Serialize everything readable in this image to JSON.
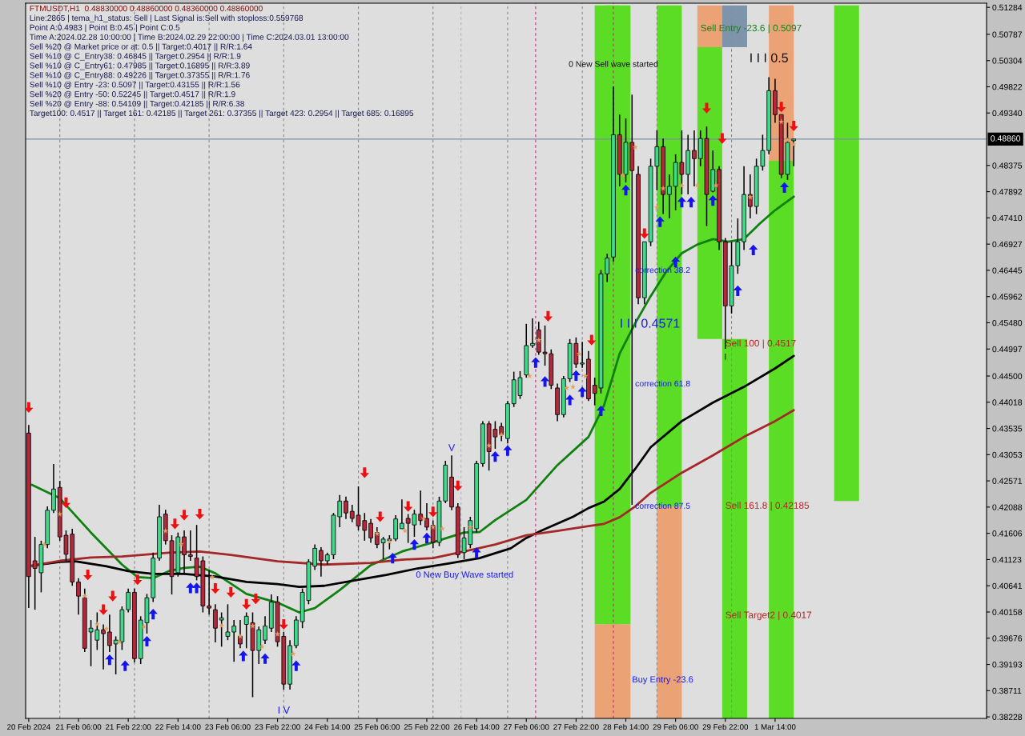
{
  "chart_data": {
    "type": "candlestick",
    "title": "FTMUSDT,H1  0.48830000 0.48860000 0.48360000 0.48860000",
    "x": [
      "2024-02-20T14:00",
      "2024-02-20T16:00",
      "2024-02-20T18:00",
      "2024-02-20T20:00",
      "2024-02-20T22:00",
      "2024-02-21T00:00",
      "2024-02-21T02:00",
      "2024-02-21T04:00",
      "2024-02-21T06:00",
      "2024-02-21T08:00",
      "2024-02-21T10:00",
      "2024-02-21T12:00",
      "2024-02-21T14:00",
      "2024-02-21T16:00",
      "2024-02-21T18:00",
      "2024-02-21T20:00",
      "2024-02-21T22:00",
      "2024-02-22T00:00",
      "2024-02-22T02:00",
      "2024-02-22T04:00",
      "2024-02-22T06:00",
      "2024-02-22T08:00",
      "2024-02-22T10:00",
      "2024-02-22T12:00",
      "2024-02-22T14:00",
      "2024-02-22T16:00",
      "2024-02-22T18:00",
      "2024-02-22T20:00",
      "2024-02-22T22:00",
      "2024-02-23T00:00",
      "2024-02-23T02:00",
      "2024-02-23T04:00",
      "2024-02-23T06:00",
      "2024-02-23T08:00",
      "2024-02-23T10:00",
      "2024-02-23T12:00",
      "2024-02-23T14:00",
      "2024-02-23T16:00",
      "2024-02-23T18:00",
      "2024-02-23T20:00",
      "2024-02-23T22:00",
      "2024-02-24T00:00",
      "2024-02-24T02:00",
      "2024-02-24T04:00",
      "2024-02-24T06:00",
      "2024-02-24T08:00",
      "2024-02-24T10:00",
      "2024-02-24T12:00",
      "2024-02-24T14:00",
      "2024-02-24T16:00",
      "2024-02-24T18:00",
      "2024-02-24T20:00",
      "2024-02-24T22:00",
      "2024-02-25T00:00",
      "2024-02-25T02:00",
      "2024-02-25T04:00",
      "2024-02-25T06:00",
      "2024-02-25T08:00",
      "2024-02-25T10:00",
      "2024-02-25T12:00",
      "2024-02-25T14:00",
      "2024-02-25T16:00",
      "2024-02-25T18:00",
      "2024-02-25T20:00",
      "2024-02-25T22:00",
      "2024-02-26T00:00",
      "2024-02-26T02:00",
      "2024-02-26T04:00",
      "2024-02-26T06:00",
      "2024-02-26T08:00",
      "2024-02-26T10:00",
      "2024-02-26T12:00",
      "2024-02-26T14:00",
      "2024-02-26T16:00",
      "2024-02-26T18:00",
      "2024-02-26T20:00",
      "2024-02-26T22:00",
      "2024-02-27T00:00",
      "2024-02-27T02:00",
      "2024-02-27T04:00",
      "2024-02-27T06:00",
      "2024-02-27T08:00",
      "2024-02-27T10:00",
      "2024-02-27T12:00",
      "2024-02-27T14:00",
      "2024-02-27T16:00",
      "2024-02-27T18:00",
      "2024-02-27T20:00",
      "2024-02-27T22:00",
      "2024-02-28T00:00",
      "2024-02-28T02:00",
      "2024-02-28T04:00",
      "2024-02-28T06:00",
      "2024-02-28T08:00",
      "2024-02-28T10:00",
      "2024-02-28T12:00",
      "2024-02-28T14:00",
      "2024-02-28T16:00",
      "2024-02-28T18:00",
      "2024-02-28T20:00",
      "2024-02-28T22:00",
      "2024-02-29T00:00",
      "2024-02-29T02:00",
      "2024-02-29T04:00",
      "2024-02-29T06:00",
      "2024-02-29T08:00",
      "2024-02-29T10:00",
      "2024-02-29T12:00",
      "2024-02-29T14:00",
      "2024-02-29T16:00",
      "2024-02-29T18:00",
      "2024-02-29T20:00",
      "2024-02-29T22:00",
      "2024-03-01T00:00",
      "2024-03-01T02:00",
      "2024-03-01T04:00",
      "2024-03-01T06:00",
      "2024-03-01T08:00",
      "2024-03-01T10:00",
      "2024-03-01T12:00",
      "2024-03-01T14:00",
      "2024-03-01T16:00",
      "2024-03-01T18:00",
      "2024-03-01T20:00"
    ],
    "ohlc": [
      [
        0.4345,
        0.436,
        0.4023,
        0.4081
      ],
      [
        0.411,
        0.4154,
        0.402,
        0.4096
      ],
      [
        0.4088,
        0.4147,
        0.4052,
        0.414
      ],
      [
        0.414,
        0.421,
        0.4133,
        0.4203
      ],
      [
        0.4203,
        0.4288,
        0.4198,
        0.4242
      ],
      [
        0.4245,
        0.4257,
        0.4147,
        0.4154
      ],
      [
        0.4157,
        0.4166,
        0.411,
        0.4122
      ],
      [
        0.4159,
        0.4169,
        0.4064,
        0.4071
      ],
      [
        0.4071,
        0.4078,
        0.4011,
        0.4045
      ],
      [
        0.4042,
        0.4059,
        0.3942,
        0.3949
      ],
      [
        0.3979,
        0.4001,
        0.3916,
        0.3986
      ],
      [
        0.3964,
        0.4015,
        0.3946,
        0.3983
      ],
      [
        0.3983,
        0.3993,
        0.391,
        0.3976
      ],
      [
        0.3979,
        0.4011,
        0.3942,
        0.3954
      ],
      [
        0.3957,
        0.3971,
        0.3901,
        0.3964
      ],
      [
        0.3961,
        0.4026,
        0.3946,
        0.402
      ],
      [
        0.402,
        0.4059,
        0.4015,
        0.4052
      ],
      [
        0.4052,
        0.4059,
        0.3923,
        0.393
      ],
      [
        0.393,
        0.4008,
        0.392,
        0.4001
      ],
      [
        0.3996,
        0.4049,
        0.3976,
        0.4042
      ],
      [
        0.4042,
        0.4125,
        0.4034,
        0.4115
      ],
      [
        0.4115,
        0.4213,
        0.411,
        0.4191
      ],
      [
        0.4196,
        0.4204,
        0.414,
        0.4147
      ],
      [
        0.4147,
        0.4157,
        0.4048,
        0.4081
      ],
      [
        0.4088,
        0.4162,
        0.4081,
        0.4154
      ],
      [
        0.4154,
        0.4166,
        0.4088,
        0.4121
      ],
      [
        0.4121,
        0.4166,
        0.411,
        0.4118
      ],
      [
        0.4115,
        0.4176,
        0.4074,
        0.4081
      ],
      [
        0.411,
        0.4118,
        0.4015,
        0.4027
      ],
      [
        0.4027,
        0.4093,
        0.4011,
        0.4023
      ],
      [
        0.402,
        0.403,
        0.396,
        0.3986
      ],
      [
        0.4001,
        0.4015,
        0.3952,
        0.4005
      ],
      [
        0.3971,
        0.403,
        0.3964,
        0.3979
      ],
      [
        0.3979,
        0.4001,
        0.3924,
        0.399
      ],
      [
        0.3971,
        0.4001,
        0.3949,
        0.3957
      ],
      [
        0.3993,
        0.4015,
        0.3949,
        0.4008
      ],
      [
        0.3996,
        0.4015,
        0.3859,
        0.3945
      ],
      [
        0.3945,
        0.3989,
        0.392,
        0.3983
      ],
      [
        0.3964,
        0.4008,
        0.3957,
        0.399
      ],
      [
        0.3986,
        0.4048,
        0.3979,
        0.4034
      ],
      [
        0.4034,
        0.4045,
        0.3952,
        0.3961
      ],
      [
        0.3971,
        0.3979,
        0.3873,
        0.3883
      ],
      [
        0.3883,
        0.3964,
        0.3873,
        0.3954
      ],
      [
        0.3954,
        0.4008,
        0.3949,
        0.4001
      ],
      [
        0.3998,
        0.4059,
        0.3986,
        0.4052
      ],
      [
        0.4037,
        0.4113,
        0.403,
        0.4108
      ],
      [
        0.41,
        0.414,
        0.4093,
        0.4133
      ],
      [
        0.4129,
        0.4135,
        0.4081,
        0.411
      ],
      [
        0.411,
        0.4125,
        0.4103,
        0.4121
      ],
      [
        0.4121,
        0.4198,
        0.4113,
        0.4194
      ],
      [
        0.4191,
        0.4231,
        0.4172,
        0.422
      ],
      [
        0.422,
        0.4228,
        0.4187,
        0.4198
      ],
      [
        0.4201,
        0.4213,
        0.4181,
        0.4188
      ],
      [
        0.4194,
        0.4247,
        0.4166,
        0.4174
      ],
      [
        0.4184,
        0.4198,
        0.4147,
        0.4166
      ],
      [
        0.4179,
        0.4187,
        0.4143,
        0.4152
      ],
      [
        0.4162,
        0.4172,
        0.4133,
        0.414
      ],
      [
        0.4143,
        0.4154,
        0.4113,
        0.415
      ],
      [
        0.4147,
        0.4157,
        0.4131,
        0.415
      ],
      [
        0.415,
        0.4194,
        0.4146,
        0.4187
      ],
      [
        0.4169,
        0.4223,
        0.4169,
        0.4179
      ],
      [
        0.4188,
        0.4196,
        0.4143,
        0.4179
      ],
      [
        0.4176,
        0.4204,
        0.4154,
        0.4196
      ],
      [
        0.4196,
        0.4239,
        0.4176,
        0.4184
      ],
      [
        0.4188,
        0.4216,
        0.4166,
        0.4172
      ],
      [
        0.4175,
        0.4184,
        0.4133,
        0.4144
      ],
      [
        0.4144,
        0.4228,
        0.4137,
        0.422
      ],
      [
        0.422,
        0.4294,
        0.4216,
        0.4286
      ],
      [
        0.4264,
        0.4304,
        0.4203,
        0.4209
      ],
      [
        0.4209,
        0.4216,
        0.4115,
        0.4121
      ],
      [
        0.4125,
        0.4172,
        0.4113,
        0.4152
      ],
      [
        0.414,
        0.4191,
        0.4133,
        0.4184
      ],
      [
        0.4169,
        0.4294,
        0.4162,
        0.4289
      ],
      [
        0.4289,
        0.4367,
        0.4283,
        0.4362
      ],
      [
        0.4362,
        0.4367,
        0.4276,
        0.4311
      ],
      [
        0.4352,
        0.4367,
        0.4316,
        0.4338
      ],
      [
        0.4357,
        0.4364,
        0.433,
        0.4342
      ],
      [
        0.4335,
        0.4404,
        0.4326,
        0.4399
      ],
      [
        0.4399,
        0.4458,
        0.4393,
        0.4443
      ],
      [
        0.4414,
        0.4459,
        0.4408,
        0.4447
      ],
      [
        0.4452,
        0.4546,
        0.4447,
        0.4506
      ],
      [
        0.4506,
        0.4556,
        0.4502,
        0.451
      ],
      [
        0.4535,
        0.455,
        0.4489,
        0.4494
      ],
      [
        0.4494,
        0.4543,
        0.4469,
        0.4491
      ],
      [
        0.4491,
        0.4499,
        0.4426,
        0.4433
      ],
      [
        0.4428,
        0.4436,
        0.4367,
        0.4379
      ],
      [
        0.4379,
        0.445,
        0.4374,
        0.4445
      ],
      [
        0.4445,
        0.4518,
        0.4439,
        0.451
      ],
      [
        0.451,
        0.4521,
        0.4465,
        0.4472
      ],
      [
        0.4472,
        0.4513,
        0.4465,
        0.4474
      ],
      [
        0.4481,
        0.4496,
        0.4404,
        0.4408
      ],
      [
        0.4433,
        0.4447,
        0.4396,
        0.4418
      ],
      [
        0.4428,
        0.4645,
        0.4418,
        0.4638
      ],
      [
        0.4638,
        0.4675,
        0.4623,
        0.4667
      ],
      [
        0.4669,
        0.4983,
        0.466,
        0.4894
      ],
      [
        0.4894,
        0.4931,
        0.4799,
        0.4821
      ],
      [
        0.4821,
        0.4924,
        0.4806,
        0.488
      ],
      [
        0.488,
        0.4968,
        0.4213,
        0.4828
      ],
      [
        0.4821,
        0.4836,
        0.4582,
        0.4594
      ],
      [
        0.4594,
        0.4697,
        0.4582,
        0.4697
      ],
      [
        0.4697,
        0.485,
        0.4689,
        0.4836
      ],
      [
        0.4836,
        0.4902,
        0.4792,
        0.4872
      ],
      [
        0.4872,
        0.4887,
        0.4748,
        0.4784
      ],
      [
        0.4784,
        0.4821,
        0.474,
        0.4799
      ],
      [
        0.4799,
        0.4858,
        0.4755,
        0.4843
      ],
      [
        0.4843,
        0.4902,
        0.4784,
        0.4821
      ],
      [
        0.4821,
        0.4894,
        0.4784,
        0.4865
      ],
      [
        0.4865,
        0.4902,
        0.4799,
        0.485
      ],
      [
        0.485,
        0.4902,
        0.4836,
        0.4887
      ],
      [
        0.4887,
        0.4909,
        0.4726,
        0.4784
      ],
      [
        0.479,
        0.4865,
        0.4788,
        0.483
      ],
      [
        0.483,
        0.4836,
        0.4682,
        0.4697
      ],
      [
        0.4697,
        0.4704,
        0.45,
        0.4579
      ],
      [
        0.4579,
        0.4697,
        0.4565,
        0.4653
      ],
      [
        0.4653,
        0.474,
        0.4638,
        0.4697
      ],
      [
        0.4697,
        0.4836,
        0.4682,
        0.4784
      ],
      [
        0.4784,
        0.4821,
        0.474,
        0.4762
      ],
      [
        0.4762,
        0.485,
        0.4748,
        0.4836
      ],
      [
        0.4836,
        0.4894,
        0.4828,
        0.4865
      ],
      [
        0.4865,
        0.5,
        0.4858,
        0.4975
      ],
      [
        0.4975,
        0.4997,
        0.4916,
        0.4931
      ],
      [
        0.4931,
        0.4931,
        0.4814,
        0.4821
      ],
      [
        0.4821,
        0.4916,
        0.4811,
        0.488
      ],
      [
        0.4883,
        0.4886,
        0.4836,
        0.4886
      ]
    ],
    "colors": [
      "#b3283a",
      "#b3283a",
      "#3fd98b",
      "#3fd98b",
      "#3fd98b",
      "#b3283a",
      "#b3283a",
      "#b3283a",
      "#b3283a",
      "#b3283a",
      "#3fd98b",
      "#3fd98b",
      "#b3283a",
      "#b3283a",
      "#3fd98b",
      "#3fd98b",
      "#3fd98b",
      "#b3283a",
      "#3fd98b",
      "#3fd98b",
      "#3fd98b",
      "#3fd98b",
      "#b3283a",
      "#b3283a",
      "#3fd98b",
      "#b3283a",
      "#b3283a",
      "#b3283a",
      "#b3283a",
      "#b3283a",
      "#b3283a",
      "#3fd98b",
      "#3fd98b",
      "#3fd98b",
      "#b3283a",
      "#3fd98b",
      "#b3283a",
      "#3fd98b",
      "#3fd98b",
      "#3fd98b",
      "#b3283a",
      "#b3283a",
      "#3fd98b",
      "#3fd98b",
      "#3fd98b",
      "#3fd98b",
      "#3fd98b",
      "#b3283a",
      "#3fd98b",
      "#3fd98b",
      "#3fd98b",
      "#b3283a",
      "#b3283a",
      "#b3283a",
      "#b3283a",
      "#b3283a",
      "#b3283a",
      "#3fd98b",
      "#3fd98b",
      "#3fd98b",
      "#3fd98b",
      "#b3283a",
      "#3fd98b",
      "#b3283a",
      "#b3283a",
      "#b3283a",
      "#3fd98b",
      "#3fd98b",
      "#b3283a",
      "#b3283a",
      "#3fd98b",
      "#3fd98b",
      "#3fd98b",
      "#3fd98b",
      "#b3283a",
      "#b3283a",
      "#b3283a",
      "#3fd98b",
      "#3fd98b",
      "#3fd98b",
      "#3fd98b",
      "#3fd98b",
      "#b3283a",
      "#b3283a",
      "#b3283a",
      "#b3283a",
      "#3fd98b",
      "#3fd98b",
      "#b3283a",
      "#3fd98b",
      "#b3283a",
      "#b3283a",
      "#3fd98b",
      "#3fd98b",
      "#3fd98b",
      "#b3283a",
      "#3fd98b",
      "#b3283a",
      "#b3283a",
      "#3fd98b",
      "#3fd98b",
      "#3fd98b",
      "#b3283a",
      "#3fd98b",
      "#3fd98b",
      "#b3283a",
      "#3fd98b",
      "#b3283a",
      "#3fd98b",
      "#b3283a",
      "#3fd98b",
      "#b3283a",
      "#b3283a",
      "#3fd98b",
      "#3fd98b",
      "#3fd98b",
      "#b3283a",
      "#3fd98b",
      "#3fd98b",
      "#3fd98b",
      "#b3283a",
      "#b3283a",
      "#3fd98b",
      "#3fd98b"
    ],
    "series": [
      {
        "type": "bar",
        "color": "#5bdc25",
        "x": [
          "2024-02-28T08:00",
          "2024-02-28T11:30",
          "2024-02-29T04:00",
          "2024-02-29T17:00",
          "2024-03-01T01:00",
          "2024-03-01T16:00",
          "2024-03-02T13:00"
        ],
        "base": [
          0.3993,
          0.3993,
          0.421,
          0.4518,
          0.382,
          0.382,
          0.422
        ],
        "values": [
          0.1139,
          0.1139,
          0.0922,
          0.0537,
          0.0698,
          0.1026,
          0.0912
        ]
      },
      {
        "type": "bar",
        "color": "#eba274",
        "x": [
          "2024-02-28T08:00",
          "2024-02-28T11:30",
          "2024-02-29T04:00",
          "2024-02-29T17:00",
          "2024-03-01T16:00"
        ],
        "base": [
          0.382,
          0.382,
          0.382,
          0.5055,
          0.4846
        ],
        "values": [
          0.0173,
          0.0173,
          0.039,
          0.0077,
          0.0286
        ]
      },
      {
        "type": "bar",
        "color": "#7d94aa",
        "x": [
          "2024-03-01T01:00"
        ],
        "base": [
          0.5055
        ],
        "values": [
          0.0077
        ]
      },
      {
        "type": "line",
        "color": "#108010",
        "x": [
          "2024-02-20T15:00",
          "2024-02-21T00:00",
          "2024-02-21T10:00",
          "2024-02-21T20:00",
          "2024-02-22T01:00",
          "2024-02-22T06:00",
          "2024-02-22T11:00",
          "2024-02-22T16:00",
          "2024-02-22T21:00",
          "2024-02-23T02:00",
          "2024-02-23T12:00",
          "2024-02-23T22:00",
          "2024-02-24T05:00",
          "2024-02-24T10:00",
          "2024-02-24T18:00",
          "2024-02-25T04:00",
          "2024-02-25T14:00",
          "2024-02-26T00:00",
          "2024-02-26T10:00",
          "2024-02-26T15:00",
          "2024-02-26T20:00",
          "2024-02-27T06:00",
          "2024-02-27T16:00",
          "2024-02-28T02:00",
          "2024-02-28T07:00",
          "2024-02-28T12:00",
          "2024-02-28T17:00",
          "2024-02-28T22:00",
          "2024-02-29T03:00",
          "2024-02-29T08:00",
          "2024-02-29T13:00",
          "2024-02-29T18:00",
          "2024-02-29T23:00",
          "2024-03-01T04:00",
          "2024-03-01T09:00",
          "2024-03-01T14:00",
          "2024-03-01T20:00"
        ],
        "values": [
          0.425,
          0.4225,
          0.4162,
          0.4103,
          0.408,
          0.4078,
          0.4091,
          0.4097,
          0.4099,
          0.4087,
          0.4049,
          0.4033,
          0.4015,
          0.4023,
          0.4056,
          0.4102,
          0.4127,
          0.4144,
          0.4162,
          0.4163,
          0.4185,
          0.4222,
          0.4286,
          0.4338,
          0.4396,
          0.4491,
          0.4547,
          0.4597,
          0.4642,
          0.4676,
          0.4692,
          0.4702,
          0.4697,
          0.4702,
          0.473,
          0.4755,
          0.478
        ]
      },
      {
        "type": "line",
        "color": "#000000",
        "x": [
          "2024-02-20T15:00",
          "2024-02-21T00:00",
          "2024-02-21T05:00",
          "2024-02-21T15:00",
          "2024-02-21T22:00",
          "2024-02-22T06:00",
          "2024-02-22T16:00",
          "2024-02-23T02:00",
          "2024-02-23T12:00",
          "2024-02-23T22:00",
          "2024-02-24T05:00",
          "2024-02-24T13:00",
          "2024-02-24T23:00",
          "2024-02-25T09:00",
          "2024-02-25T19:00",
          "2024-02-26T05:00",
          "2024-02-26T15:00",
          "2024-02-27T01:00",
          "2024-02-27T06:00",
          "2024-02-27T11:00",
          "2024-02-27T21:00",
          "2024-02-28T02:00",
          "2024-02-28T07:00",
          "2024-02-28T12:00",
          "2024-02-28T17:00",
          "2024-02-28T22:00",
          "2024-02-29T08:00",
          "2024-02-29T18:00",
          "2024-03-01T04:00",
          "2024-03-01T14:00",
          "2024-03-01T20:00"
        ],
        "values": [
          0.4101,
          0.4108,
          0.4109,
          0.41,
          0.4091,
          0.4086,
          0.4086,
          0.4081,
          0.4071,
          0.4067,
          0.4062,
          0.4064,
          0.4074,
          0.4084,
          0.4096,
          0.4105,
          0.4115,
          0.4133,
          0.4152,
          0.4166,
          0.4191,
          0.4207,
          0.4219,
          0.4242,
          0.4279,
          0.4319,
          0.4367,
          0.4401,
          0.443,
          0.4464,
          0.4487
        ]
      },
      {
        "type": "line",
        "color": "#a52828",
        "x": [
          "2024-02-20T15:00",
          "2024-02-21T00:00",
          "2024-02-21T10:00",
          "2024-02-21T20:00",
          "2024-02-22T11:00",
          "2024-02-22T21:00",
          "2024-02-23T07:00",
          "2024-02-23T22:00",
          "2024-02-24T13:00",
          "2024-02-25T04:00",
          "2024-02-25T14:00",
          "2024-02-26T00:00",
          "2024-02-26T10:00",
          "2024-02-26T20:00",
          "2024-02-27T06:00",
          "2024-02-27T16:00",
          "2024-02-28T02:00",
          "2024-02-28T07:00",
          "2024-02-28T12:00",
          "2024-02-28T17:00",
          "2024-02-28T22:00",
          "2024-02-29T08:00",
          "2024-02-29T18:00",
          "2024-03-01T04:00",
          "2024-03-01T14:00",
          "2024-03-01T20:00"
        ],
        "values": [
          0.4101,
          0.411,
          0.4116,
          0.4118,
          0.4125,
          0.4127,
          0.4121,
          0.4109,
          0.4103,
          0.4106,
          0.4112,
          0.4115,
          0.4127,
          0.414,
          0.4157,
          0.4165,
          0.4174,
          0.4178,
          0.419,
          0.421,
          0.4235,
          0.4272,
          0.4304,
          0.4338,
          0.4367,
          0.4387
        ]
      },
      {
        "type": "scatter",
        "color": "#ee1010",
        "marker": "triangle_down",
        "x": [
          "2024-02-20T14:00",
          "2024-02-21T02:00",
          "2024-02-21T09:00",
          "2024-02-21T14:00",
          "2024-02-21T17:00",
          "2024-02-22T01:00",
          "2024-02-22T13:00",
          "2024-02-22T16:00",
          "2024-02-22T21:00",
          "2024-02-23T02:00",
          "2024-02-23T07:00",
          "2024-02-23T12:00",
          "2024-02-23T15:00",
          "2024-02-24T00:00",
          "2024-02-25T02:00",
          "2024-02-25T07:00",
          "2024-02-25T16:00",
          "2024-02-26T00:00",
          "2024-02-26T08:00",
          "2024-02-27T13:00",
          "2024-02-28T03:00",
          "2024-02-28T20:00",
          "2024-02-29T16:00",
          "2024-02-29T21:00",
          "2024-03-01T16:00",
          "2024-03-01T20:00"
        ],
        "values": [
          0.4392,
          0.4217,
          0.4084,
          0.402,
          0.4045,
          0.4075,
          0.4178,
          0.4194,
          0.4196,
          0.4059,
          0.4052,
          0.403,
          0.404,
          0.3993,
          0.4272,
          0.4191,
          0.421,
          0.42,
          0.4248,
          0.456,
          0.4516,
          0.4712,
          0.4943,
          0.4887,
          0.4945,
          0.491
        ]
      },
      {
        "type": "scatter",
        "color": "#1414ee",
        "marker": "triangle",
        "x": [
          "2024-02-21T16:00",
          "2024-02-21T21:00",
          "2024-02-22T04:00",
          "2024-02-22T06:00",
          "2024-02-22T18:00",
          "2024-02-22T20:00",
          "2024-02-23T11:00",
          "2024-02-23T18:00",
          "2024-02-24T04:00",
          "2024-02-25T11:00",
          "2024-02-25T18:00",
          "2024-02-25T22:00",
          "2024-02-26T14:00",
          "2024-02-26T20:00",
          "2024-02-27T00:00",
          "2024-02-27T09:00",
          "2024-02-27T12:00",
          "2024-02-27T20:00",
          "2024-02-27T22:00",
          "2024-02-28T00:00",
          "2024-02-28T06:00",
          "2024-02-28T14:00",
          "2024-02-29T01:00",
          "2024-02-29T06:00",
          "2024-02-29T08:00",
          "2024-02-29T11:00",
          "2024-02-29T18:00",
          "2024-03-01T02:00",
          "2024-03-01T07:00",
          "2024-03-01T17:00"
        ],
        "values": [
          0.3928,
          0.3917,
          0.3962,
          0.4012,
          0.406,
          0.406,
          0.3935,
          0.393,
          0.3917,
          0.4115,
          0.414,
          0.4152,
          0.4125,
          0.4302,
          0.4313,
          0.4475,
          0.444,
          0.4406,
          0.4451,
          0.4421,
          0.4386,
          0.4792,
          0.4734,
          0.466,
          0.477,
          0.477,
          0.4773,
          0.4607,
          0.4682,
          0.4797
        ]
      },
      {
        "type": "scatter",
        "color": "#e0a060",
        "marker": "star",
        "x": [
          "2024-02-20T19:00",
          "2024-02-21T00:00",
          "2024-02-21T08:00",
          "2024-02-21T12:00",
          "2024-02-21T15:00",
          "2024-02-21T19:00",
          "2024-02-22T03:00",
          "2024-02-22T10:00",
          "2024-02-22T15:00",
          "2024-02-23T01:00",
          "2024-02-23T04:00",
          "2024-02-23T10:00",
          "2024-02-23T14:00",
          "2024-02-23T17:00",
          "2024-02-23T22:00",
          "2024-02-24T03:00",
          "2024-02-25T06:00",
          "2024-02-25T10:00",
          "2024-02-25T15:00",
          "2024-02-25T21:00",
          "2024-02-26T00:00",
          "2024-02-26T03:00",
          "2024-02-26T12:00",
          "2024-02-26T18:00",
          "2024-02-26T22:00",
          "2024-02-27T07:00",
          "2024-02-27T10:00",
          "2024-02-27T19:00",
          "2024-02-27T21:00",
          "2024-02-27T23:00",
          "2024-02-28T01:00",
          "2024-02-28T13:00",
          "2024-02-28T17:00",
          "2024-02-29T00:00",
          "2024-02-29T02:00",
          "2024-02-29T08:00",
          "2024-02-29T13:00",
          "2024-02-29T19:00",
          "2024-03-01T06:00",
          "2024-03-01T16:00",
          "2024-03-01T18:00",
          "2024-03-01T20:00"
        ],
        "values": [
          0.414,
          0.4196,
          0.4045,
          0.3993,
          0.3985,
          0.3961,
          0.3989,
          0.4165,
          0.4141,
          0.408,
          0.399,
          0.3971,
          0.399,
          0.3952,
          0.3975,
          0.3939,
          0.416,
          0.4145,
          0.4165,
          0.4188,
          0.4172,
          0.4169,
          0.4172,
          0.4322,
          0.4342,
          0.445,
          0.4516,
          0.4428,
          0.443,
          0.4491,
          0.445,
          0.482,
          0.4871,
          0.476,
          0.4795,
          0.48,
          0.4801,
          0.4801,
          0.4779,
          0.4918,
          0.4884,
          0.4876
        ]
      }
    ],
    "xlim": [
      "2024-02-20T13:00",
      "2024-03-04T10:00"
    ],
    "xticks": [
      {
        "value": "2024-02-20T14:00",
        "label": "20 Feb 2024"
      },
      {
        "value": "2024-02-21T06:00",
        "label": "21 Feb 06:00"
      },
      {
        "value": "2024-02-21T22:00",
        "label": "21 Feb 22:00"
      },
      {
        "value": "2024-02-22T14:00",
        "label": "22 Feb 14:00"
      },
      {
        "value": "2024-02-23T06:00",
        "label": "23 Feb 06:00"
      },
      {
        "value": "2024-02-23T22:00",
        "label": "23 Feb 22:00"
      },
      {
        "value": "2024-02-24T14:00",
        "label": "24 Feb 14:00"
      },
      {
        "value": "2024-02-25T06:00",
        "label": "25 Feb 06:00"
      },
      {
        "value": "2024-02-25T22:00",
        "label": "25 Feb 22:00"
      },
      {
        "value": "2024-02-26T14:00",
        "label": "26 Feb 14:00"
      },
      {
        "value": "2024-02-27T06:00",
        "label": "27 Feb 06:00"
      },
      {
        "value": "2024-02-27T22:00",
        "label": "27 Feb 22:00"
      },
      {
        "value": "2024-02-28T14:00",
        "label": "28 Feb 14:00"
      },
      {
        "value": "2024-02-29T06:00",
        "label": "29 Feb 06:00"
      },
      {
        "value": "2024-02-29T22:00",
        "label": "29 Feb 22:00"
      },
      {
        "value": "2024-03-01T14:00",
        "label": "1 Mar 14:00"
      }
    ],
    "ylim": [
      0.382,
      0.5136
    ],
    "yticks": [
      0.51284,
      0.50787,
      0.50304,
      0.49822,
      {
        "value": 0.4934,
        "label": "0.49340"
      },
      0.48375,
      0.47892,
      {
        "value": 0.4741,
        "label": "0.47410"
      },
      0.46927,
      0.46445,
      0.45962,
      {
        "value": 0.4548,
        "label": "0.45480"
      },
      0.44997,
      {
        "value": 0.445,
        "label": "0.44500"
      },
      0.44018,
      0.43535,
      0.43053,
      0.42571,
      0.42088,
      0.41606,
      0.41123,
      0.40641,
      0.40158,
      0.39676,
      0.39193,
      0.38711,
      0.38228
    ],
    "ref_lines": [
      {
        "axis": "y",
        "value": 0.4886,
        "label": "0.48860",
        "color": "#7b8fa5"
      },
      {
        "axis": "x",
        "value": "2024-02-21T00:00",
        "color": "#8a8a8a",
        "line_style": "dashed"
      },
      {
        "axis": "x",
        "value": "2024-02-22T00:00",
        "color": "#8a8a8a",
        "line_style": "dashed"
      },
      {
        "axis": "x",
        "value": "2024-02-23T00:00",
        "color": "#8a8a8a",
        "line_style": "dashed"
      },
      {
        "axis": "x",
        "value": "2024-02-24T00:00",
        "color": "#8a8a8a",
        "line_style": "dashed"
      },
      {
        "axis": "x",
        "value": "2024-02-25T00:00",
        "color": "#8a8a8a",
        "line_style": "dashed"
      },
      {
        "axis": "x",
        "value": "2024-02-26T00:00",
        "color": "#8a8a8a",
        "line_style": "dashed"
      },
      {
        "axis": "x",
        "value": "2024-02-27T00:00",
        "color": "#8a8a8a",
        "line_style": "dashed"
      },
      {
        "axis": "x",
        "value": "2024-02-28T00:00",
        "color": "#8a8a8a",
        "line_style": "dashed"
      },
      {
        "axis": "x",
        "value": "2024-02-29T00:00",
        "color": "#8a8a8a",
        "line_style": "dashed"
      },
      {
        "axis": "x",
        "value": "2024-03-01T00:00",
        "color": "#8a8a8a",
        "line_style": "dashed"
      },
      {
        "axis": "x",
        "value": "2024-02-26T09:00",
        "color": "#b4b4b4",
        "line_style": "dashed"
      },
      {
        "axis": "x",
        "value": "2024-02-27T09:00",
        "color": "#c0307f",
        "line_style": "dashed"
      },
      {
        "axis": "x",
        "value": "2024-02-28T10:00",
        "color": "#c0307f",
        "line_style": "dashed"
      }
    ],
    "annotations": [
      "Line:2865 | tema_h1_status: Sell | Last Signal is:Sell with stoploss:0.559768",
      "Point A:0.4983 | Point B:0.45 | Point C:0.5",
      "Time A:2024.02.28 10:00:00 | Time B:2024.02.29 22:00:00 | Time C:2024.03.01 13:00:00",
      "Sell %20 @ Market price or at: 0.5 || Target:0.4017 || R/R:1.64",
      "Sell %10 @ C_Entry38: 0.46845 || Target:0.2954 || R/R:1.9",
      "Sell %10 @ C_Entry61: 0.47985 || Target:0.16895 || R/R:3.89",
      "Sell %10 @ C_Entry88: 0.49226 || Target:0.37355 || R/R:1.76",
      "Sell %10 @ Entry -23: 0.5097 || Target:0.43155 || R/R:1.56",
      "Sell %20 @ Entry -50: 0.52245 || Target:0.4517 || R/R:1.9",
      "Sell %20 @ Entry -88: 0.54109 || Target:0.42185 || R/R:6.38",
      "Target100: 0.4517 || Target 161: 0.42185 || Target 261: 0.37355 || Target 423: 0.2954 || Target 685: 0.16895",
      {
        "text": "0 New Sell wave started",
        "x": "2024-02-28T10:00",
        "y": 0.4983
      },
      {
        "text": "Sell Entry -23.6 | 0.5097",
        "x": "2024-02-29T14:00",
        "y": 0.5097
      },
      {
        "text": "I I I 0.5",
        "x": "2024-03-01T12:00",
        "y": 0.5
      },
      {
        "text": "correction 38.2",
        "x": "2024-02-28T17:00",
        "y": 0.4651
      },
      {
        "text": "I I I 0.4571",
        "x": "2024-02-28T12:00",
        "y": 0.4556
      },
      {
        "text": "Sell 100 | 0.4517",
        "x": "2024-02-29T22:00",
        "y": 0.4517
      },
      {
        "text": "correction 61.8",
        "x": "2024-02-28T17:00",
        "y": 0.4442
      },
      {
        "text": "Sell 161.8 | 0.42185",
        "x": "2024-02-29T22:00",
        "y": 0.42185
      },
      {
        "text": "correction 87.5",
        "x": "2024-02-28T17:00",
        "y": 0.4217
      },
      {
        "text": "0 New Buy Wave started",
        "x": "2024-02-25T18:30",
        "y": 0.4091
      },
      {
        "text": "Sell Target2 | 0.4017",
        "x": "2024-02-29T22:00",
        "y": 0.4017
      },
      {
        "text": "Buy Entry -23.6",
        "x": "2024-02-28T16:00",
        "y": 0.3898
      },
      {
        "text": "V",
        "x": "2024-02-26T06:00",
        "y": 0.4304
      },
      {
        "text": "I V",
        "x": "2024-02-24T00:00",
        "y": 0.3873
      },
      {
        "text": "I",
        "x": "2024-02-29T22:00",
        "y": 0.45
      }
    ]
  }
}
